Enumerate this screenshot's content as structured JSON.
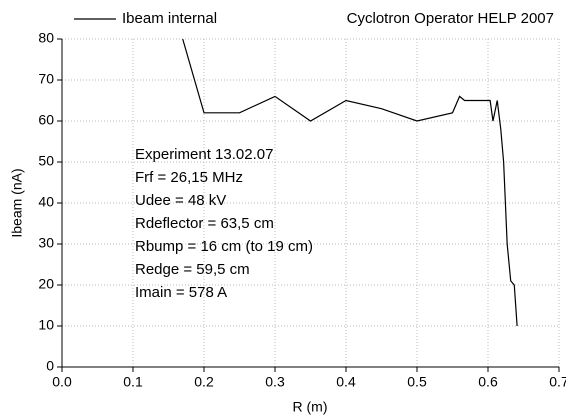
{
  "chart_data": {
    "type": "line",
    "title": "Cyclotron Operator HELP 2007",
    "xlabel": "R (m)",
    "ylabel": "Ibeam (nA)",
    "annotations": [
      "Experiment 13.02.07",
      "Frf = 26,15 MHz",
      "Udee = 48 kV",
      "Rdeflector = 63,5 cm",
      "Rbump = 16 cm (to 19 cm)",
      "Redge = 59,5 cm",
      "Imain = 578 A"
    ],
    "x": [
      0.17,
      0.2,
      0.25,
      0.3,
      0.35,
      0.4,
      0.45,
      0.5,
      0.55,
      0.56,
      0.567,
      0.6,
      0.603,
      0.607,
      0.613,
      0.618,
      0.622,
      0.627,
      0.632,
      0.637,
      0.641
    ],
    "series": [
      {
        "name": "Ibeam internal",
        "color": "#000000",
        "values": [
          80,
          62,
          62,
          66,
          60,
          65,
          63,
          60,
          62,
          66,
          65,
          65,
          65,
          60,
          65,
          58,
          50,
          30,
          21,
          20,
          10
        ]
      }
    ],
    "xlim": [
      0,
      0.7
    ],
    "xticks": [
      {
        "value": 0,
        "label": "0.0"
      },
      0.1,
      0.2,
      0.3,
      0.4,
      0.5,
      0.6,
      0.7
    ],
    "ylim": [
      0,
      80
    ],
    "yticks": [
      0,
      10,
      20,
      30,
      40,
      50,
      60,
      70,
      80
    ],
    "grid": true,
    "legend": "top-left"
  }
}
